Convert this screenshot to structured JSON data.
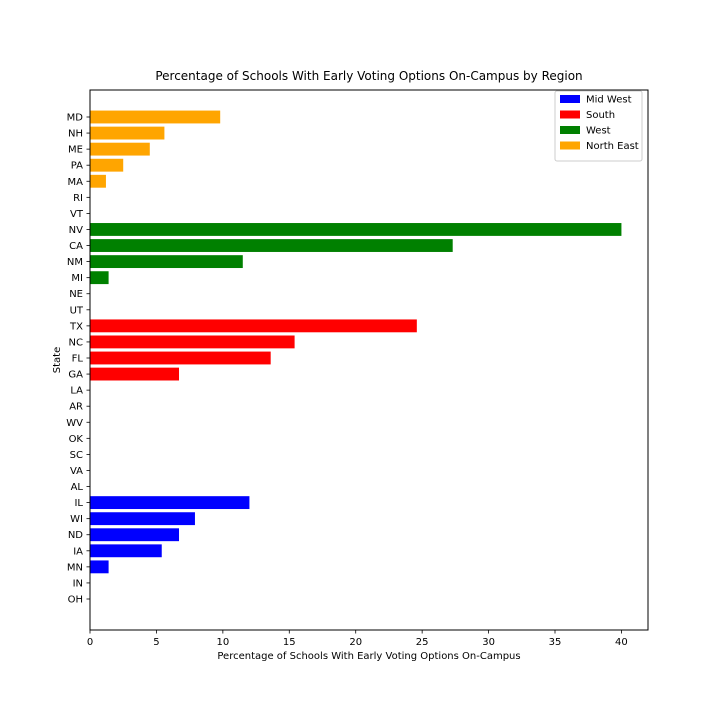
{
  "chart_data": {
    "type": "bar",
    "orientation": "horizontal",
    "title": "Percentage of Schools With Early Voting Options On-Campus by Region",
    "xlabel": "Percentage of Schools With Early Voting Options On-Campus",
    "ylabel": "State",
    "xlim": [
      0,
      42
    ],
    "x_ticks": [
      0,
      5,
      10,
      15,
      20,
      25,
      30,
      35,
      40
    ],
    "grid": false,
    "legend_position": "top-right",
    "categories": [
      "OH",
      "IN",
      "MN",
      "IA",
      "ND",
      "WI",
      "IL",
      "AL",
      "VA",
      "SC",
      "OK",
      "WV",
      "AR",
      "LA",
      "GA",
      "FL",
      "NC",
      "TX",
      "UT",
      "NE",
      "MI",
      "NM",
      "CA",
      "NV",
      "VT",
      "RI",
      "MA",
      "PA",
      "ME",
      "NH",
      "MD"
    ],
    "series": [
      {
        "name": "Mid West",
        "color": "#0000ff",
        "values": [
          0,
          0,
          1.4,
          5.4,
          6.7,
          7.9,
          12.0,
          null,
          null,
          null,
          null,
          null,
          null,
          null,
          null,
          null,
          null,
          null,
          null,
          null,
          null,
          null,
          null,
          null,
          null,
          null,
          null,
          null,
          null,
          null,
          null
        ]
      },
      {
        "name": "South",
        "color": "#ff0000",
        "values": [
          null,
          null,
          null,
          null,
          null,
          null,
          null,
          0,
          0,
          0,
          0,
          0,
          0,
          0,
          6.7,
          13.6,
          15.4,
          24.6,
          null,
          null,
          null,
          null,
          null,
          null,
          null,
          null,
          null,
          null,
          null,
          null,
          null
        ]
      },
      {
        "name": "West",
        "color": "#008000",
        "values": [
          null,
          null,
          null,
          null,
          null,
          null,
          null,
          null,
          null,
          null,
          null,
          null,
          null,
          null,
          null,
          null,
          null,
          null,
          0,
          0,
          1.4,
          11.5,
          27.3,
          40.0,
          null,
          null,
          null,
          null,
          null,
          null,
          null
        ]
      },
      {
        "name": "North East",
        "color": "#ffa500",
        "values": [
          null,
          null,
          null,
          null,
          null,
          null,
          null,
          null,
          null,
          null,
          null,
          null,
          null,
          null,
          null,
          null,
          null,
          null,
          null,
          null,
          null,
          null,
          null,
          null,
          0,
          0,
          1.2,
          2.5,
          4.5,
          5.6,
          9.8
        ]
      }
    ]
  }
}
